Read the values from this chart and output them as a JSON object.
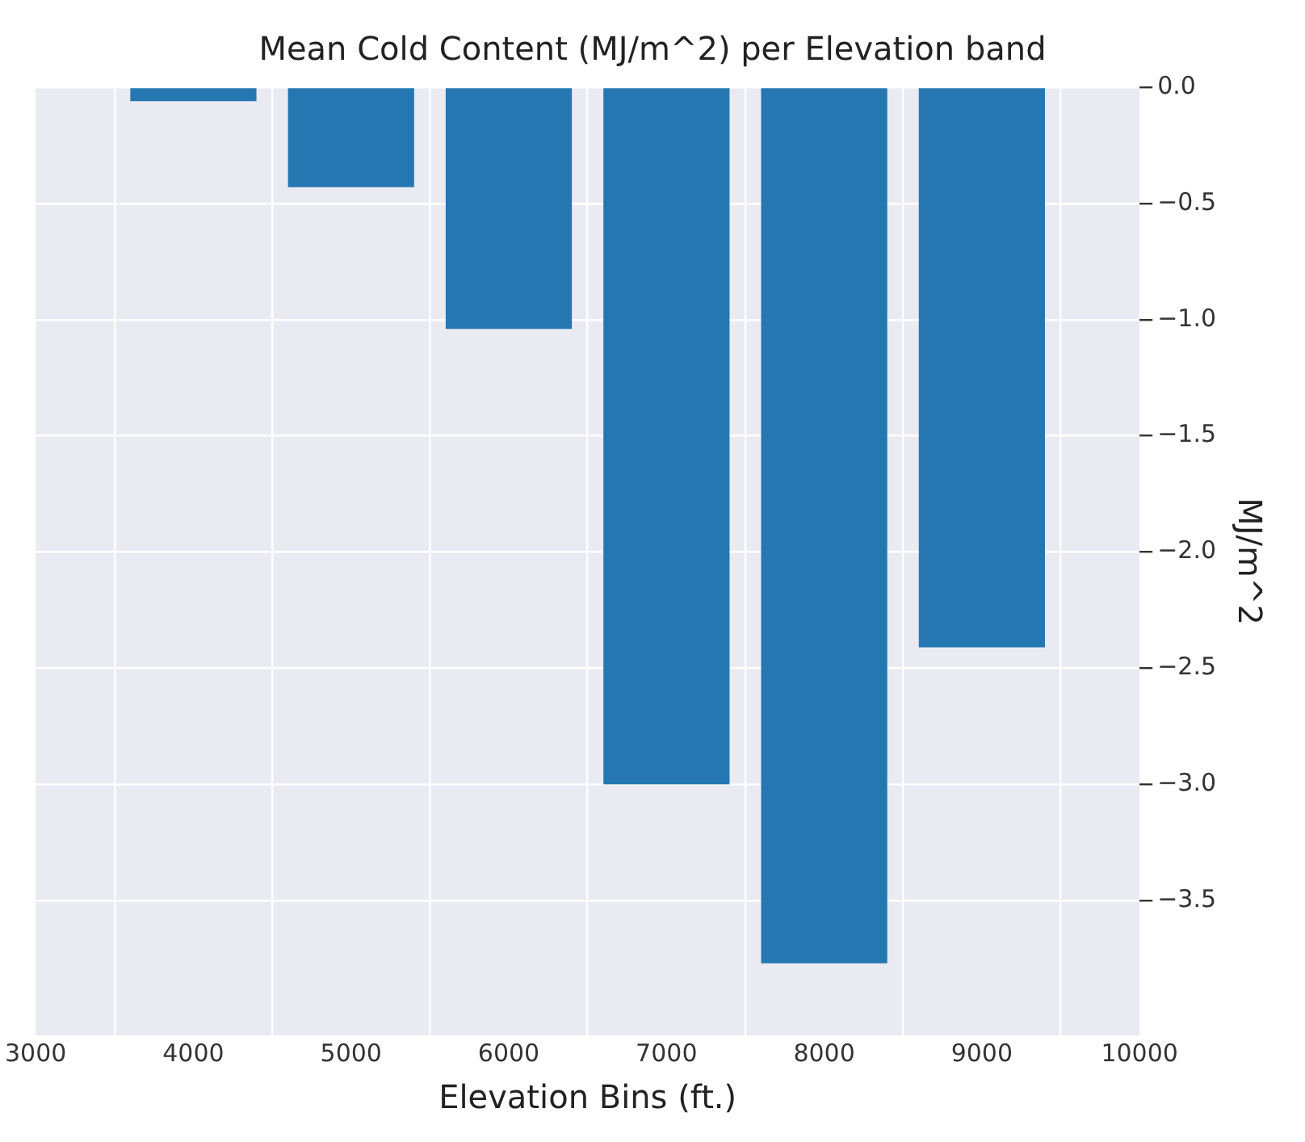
{
  "chart_data": {
    "type": "bar",
    "title": "Mean Cold Content (MJ/m^2) per Elevation band",
    "xlabel": "Elevation Bins (ft.)",
    "ylabel": "MJ/m^2",
    "x": [
      4000,
      5000,
      6000,
      7000,
      8000,
      9000
    ],
    "values": [
      -0.06,
      -0.43,
      -1.04,
      -3.0,
      -3.77,
      -2.41
    ],
    "color": "#2577b2",
    "xlim": [
      3000,
      10000
    ],
    "xticks": [
      3000,
      4000,
      5000,
      6000,
      7000,
      8000,
      9000,
      10000
    ],
    "ylim": [
      -4.08,
      0
    ],
    "yticks": [
      {
        "value": 0,
        "label": "0.0"
      },
      {
        "value": -0.5,
        "label": "−0.5"
      },
      {
        "value": -1,
        "label": "−1.0"
      },
      {
        "value": -1.5,
        "label": "−1.5"
      },
      {
        "value": -2,
        "label": "−2.0"
      },
      {
        "value": -2.5,
        "label": "−2.5"
      },
      {
        "value": -3,
        "label": "−3.0"
      },
      {
        "value": -3.5,
        "label": "−3.5"
      }
    ],
    "grid": true,
    "legend": false
  }
}
